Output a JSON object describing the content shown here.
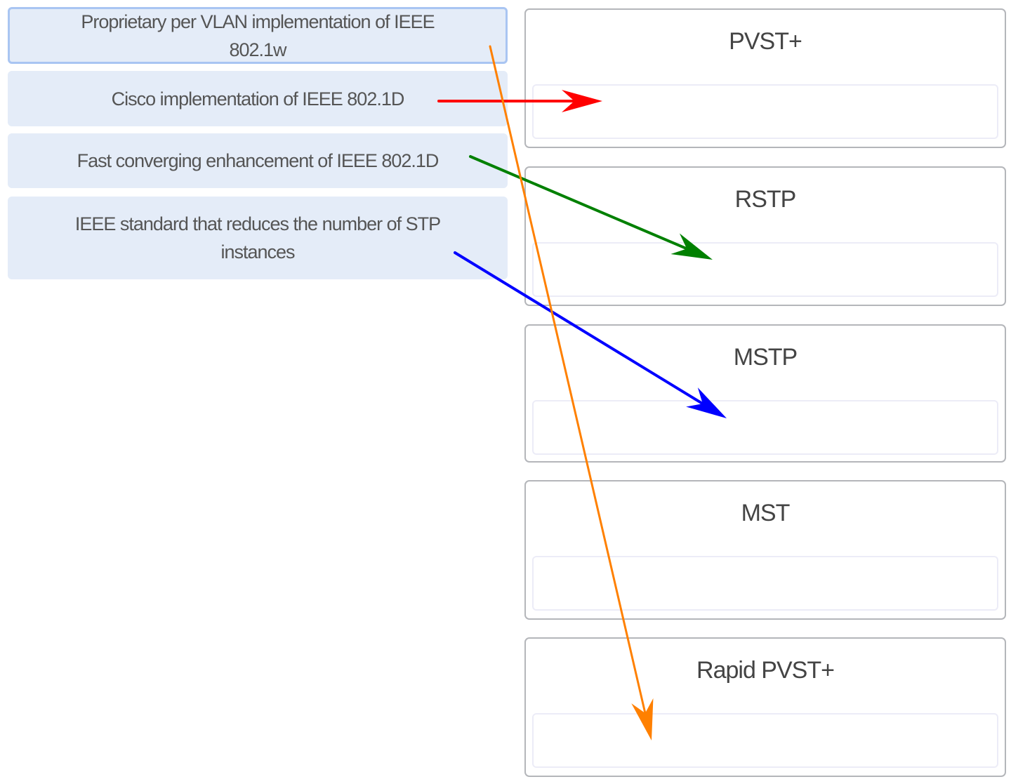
{
  "items": [
    {
      "label": "Proprietary per VLAN implementation of IEEE 802.1w",
      "selected": true
    },
    {
      "label": "Cisco implementation of IEEE 802.1D",
      "selected": false
    },
    {
      "label": "Fast converging enhancement of IEEE 802.1D",
      "selected": false
    },
    {
      "label": "IEEE standard that reduces the number of STP instances",
      "selected": false
    }
  ],
  "targets": [
    {
      "title": "PVST+"
    },
    {
      "title": "RSTP"
    },
    {
      "title": "MSTP"
    },
    {
      "title": "MST"
    },
    {
      "title": "Rapid PVST+"
    }
  ],
  "annotations": [
    {
      "from": "Cisco implementation of IEEE 802.1D",
      "to": "PVST+",
      "color": "#ff0000"
    },
    {
      "from": "Fast converging enhancement of IEEE 802.1D",
      "to": "RSTP",
      "color": "#008000"
    },
    {
      "from": "IEEE standard that reduces the number of STP instances",
      "to": "MSTP",
      "color": "#0000ff"
    },
    {
      "from": "Proprietary per VLAN implementation of IEEE 802.1w",
      "to": "Rapid PVST+",
      "color": "#ff8000"
    }
  ]
}
